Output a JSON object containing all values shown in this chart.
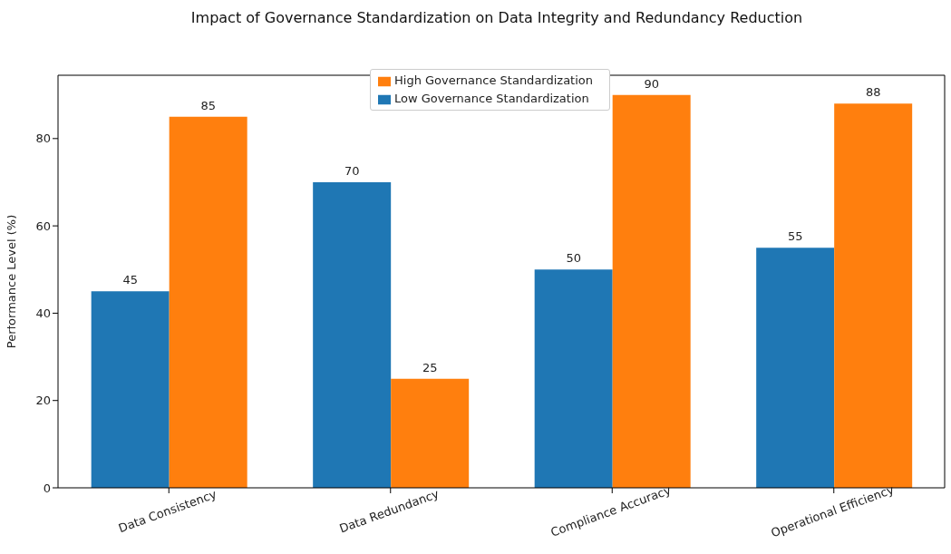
{
  "chart_data": {
    "type": "bar",
    "title": "Impact of Governance Standardization on Data Integrity and Redundancy Reduction",
    "ylabel": "Performance Level (%)",
    "categories": [
      "Data Consistency",
      "Data Redundancy",
      "Compliance Accuracy",
      "Operational Efficiency"
    ],
    "series": [
      {
        "name": "Low Governance Standardization",
        "color": "#1f77b4",
        "values": [
          45,
          70,
          50,
          55
        ]
      },
      {
        "name": "High Governance Standardization",
        "color": "#ff7f0e",
        "values": [
          85,
          25,
          90,
          88
        ]
      }
    ],
    "ylim": [
      0,
      94.5
    ],
    "yticks": [
      0,
      20,
      40,
      60,
      80
    ],
    "data_labels": true,
    "legend": "top",
    "grid": false
  }
}
